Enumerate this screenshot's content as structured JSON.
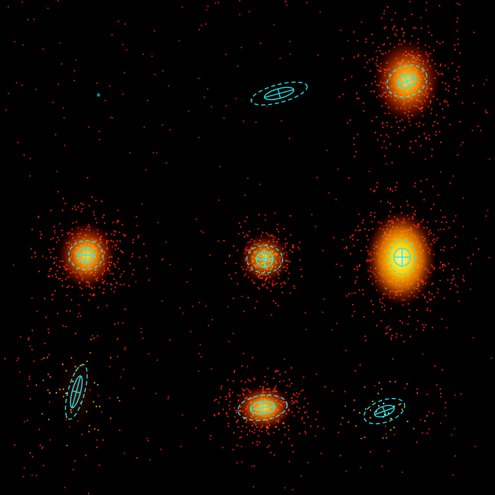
{
  "scene": {
    "description_type": "astronomical-photon-image",
    "background_color": "#000000",
    "glow_colors": [
      "#ff1a00",
      "#ff6600",
      "#ffb000",
      "#ffff66"
    ],
    "region_color": "#22e6f0",
    "marker_glyph": "*"
  },
  "sources": [
    {
      "id": "s1",
      "brightness": 0.9,
      "spread": 1.0,
      "regions": "full"
    },
    {
      "id": "s2",
      "brightness": 0.0,
      "spread": 0.0,
      "regions": "ellipse-only"
    },
    {
      "id": "s3",
      "brightness": 0.75,
      "spread": 0.9,
      "regions": "full"
    },
    {
      "id": "s4",
      "brightness": 0.55,
      "spread": 0.7,
      "regions": "full"
    },
    {
      "id": "s5",
      "brightness": 1.0,
      "spread": 1.0,
      "regions": "full"
    },
    {
      "id": "s6",
      "brightness": 0.15,
      "spread": 0.6,
      "regions": "ellipse-only"
    },
    {
      "id": "s7",
      "brightness": 0.6,
      "spread": 0.8,
      "regions": "full"
    },
    {
      "id": "s8",
      "brightness": 0.1,
      "spread": 0.5,
      "regions": "ellipse-only"
    }
  ]
}
